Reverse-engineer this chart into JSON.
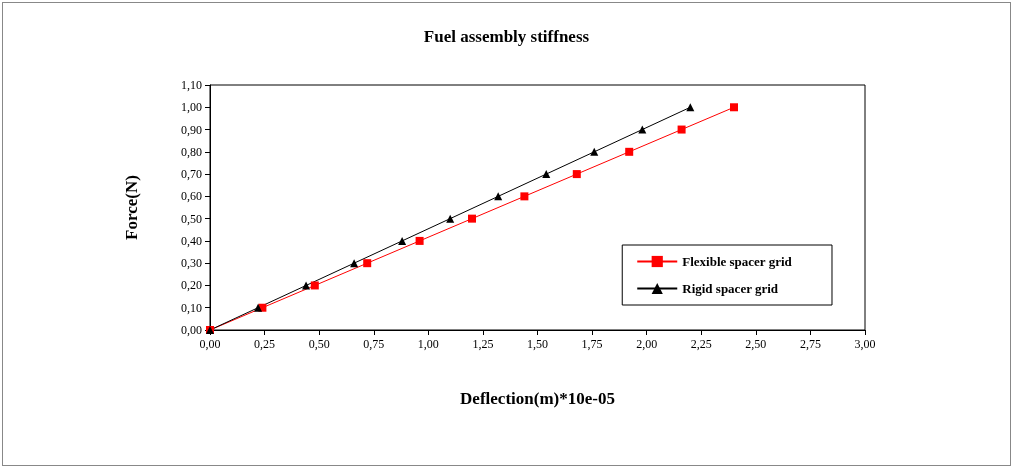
{
  "chart_data": {
    "type": "line",
    "title": "Fuel assembly stiffness",
    "xlabel": "Deflection(m)*10e-05",
    "ylabel": "Force(N)",
    "series": [
      {
        "name": "Flexible spacer grid",
        "color": "#ff0000",
        "marker": "square",
        "x": [
          0,
          0.24,
          0.48,
          0.72,
          0.96,
          1.2,
          1.44,
          1.68,
          1.92,
          2.16,
          2.4
        ],
        "values": [
          0,
          0.1,
          0.2,
          0.3,
          0.4,
          0.5,
          0.6,
          0.7,
          0.8,
          0.9,
          1.0
        ]
      },
      {
        "name": "Rigid spacer grid",
        "color": "#000000",
        "marker": "triangle",
        "x": [
          0,
          0.22,
          0.44,
          0.66,
          0.88,
          1.1,
          1.32,
          1.54,
          1.76,
          1.98,
          2.2
        ],
        "values": [
          0,
          0.1,
          0.2,
          0.3,
          0.4,
          0.5,
          0.6,
          0.7,
          0.8,
          0.9,
          1.0
        ]
      }
    ],
    "xlim": [
      0,
      3
    ],
    "ylim": [
      0,
      1.1
    ],
    "xticks": [
      {
        "value": 0,
        "label": "0,00"
      },
      {
        "value": 0.25,
        "label": "0,25"
      },
      {
        "value": 0.5,
        "label": "0,50"
      },
      {
        "value": 0.75,
        "label": "0,75"
      },
      {
        "value": 1,
        "label": "1,00"
      },
      {
        "value": 1.25,
        "label": "1,25"
      },
      {
        "value": 1.5,
        "label": "1,50"
      },
      {
        "value": 1.75,
        "label": "1,75"
      },
      {
        "value": 2,
        "label": "2,00"
      },
      {
        "value": 2.25,
        "label": "2,25"
      },
      {
        "value": 2.5,
        "label": "2,50"
      },
      {
        "value": 2.75,
        "label": "2,75"
      },
      {
        "value": 3,
        "label": "3,00"
      }
    ],
    "yticks": [
      {
        "value": 0,
        "label": "0,00"
      },
      {
        "value": 0.1,
        "label": "0,10"
      },
      {
        "value": 0.2,
        "label": "0,20"
      },
      {
        "value": 0.3,
        "label": "0,30"
      },
      {
        "value": 0.4,
        "label": "0,40"
      },
      {
        "value": 0.5,
        "label": "0,50"
      },
      {
        "value": 0.6,
        "label": "0,60"
      },
      {
        "value": 0.7,
        "label": "0,70"
      },
      {
        "value": 0.8,
        "label": "0,80"
      },
      {
        "value": 0.9,
        "label": "0,90"
      },
      {
        "value": 1.0,
        "label": "1,00"
      },
      {
        "value": 1.1,
        "label": "1,10"
      }
    ],
    "legend": "bottom right",
    "line_style": "solid"
  }
}
